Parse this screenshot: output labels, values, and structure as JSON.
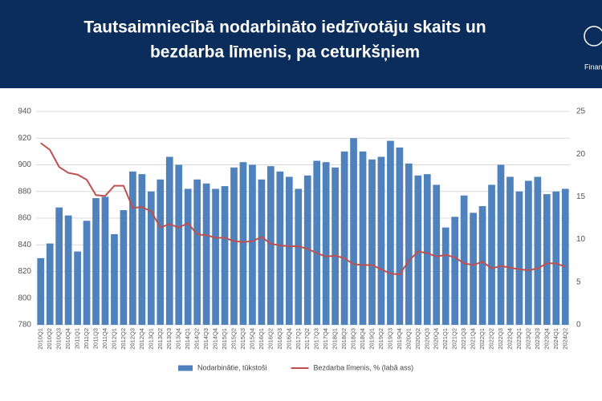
{
  "chart_data": {
    "type": "bar_line",
    "title_lines": [
      "Tautsaimniecībā nodarbināto iedzīvotāju skaits un",
      "bezdarba līmenis, pa ceturkšņiem"
    ],
    "logo_text": "Finan",
    "categories": [
      "2010Q1",
      "2010Q2",
      "2010Q3",
      "2010Q4",
      "2011Q1",
      "2011Q2",
      "2011Q3",
      "2011Q4",
      "2012Q1",
      "2012Q2",
      "2012Q3",
      "2012Q4",
      "2013Q1",
      "2013Q2",
      "2013Q3",
      "2013Q4",
      "2014Q1",
      "2014Q2",
      "2014Q3",
      "2014Q4",
      "2015Q1",
      "2015Q2",
      "2015Q3",
      "2015Q4",
      "2016Q1",
      "2016Q2",
      "2016Q3",
      "2016Q4",
      "2017Q1",
      "2017Q2",
      "2017Q3",
      "2017Q4",
      "2018Q1",
      "2018Q2",
      "2018Q3",
      "2018Q4",
      "2019Q1",
      "2019Q2",
      "2019Q3",
      "2019Q4",
      "2020Q1",
      "2020Q2",
      "2020Q3",
      "2020Q4",
      "2021Q1",
      "2021Q2",
      "2021Q3",
      "2021Q4",
      "2022Q1",
      "2022Q2",
      "2022Q3",
      "2022Q4",
      "2023Q1",
      "2023Q2",
      "2023Q3",
      "2023Q4",
      "2024Q1",
      "2024Q2"
    ],
    "series": [
      {
        "name": "Nodarbinātie, tūkstoši",
        "color": "#4f81bd",
        "type": "bar",
        "values": [
          830,
          841,
          868,
          862,
          835,
          858,
          875,
          876,
          848,
          866,
          895,
          893,
          880,
          889,
          906,
          900,
          882,
          889,
          886,
          882,
          884,
          898,
          902,
          900,
          889,
          899,
          895,
          891,
          882,
          892,
          903,
          902,
          898,
          910,
          920,
          910,
          904,
          906,
          918,
          913,
          901,
          892,
          893,
          885,
          853,
          861,
          877,
          864,
          869,
          885,
          900,
          891,
          880,
          888,
          891,
          878,
          880,
          882
        ]
      },
      {
        "name": "Bezdarba līmenis, % (labā ass)",
        "color": "#c0504d",
        "type": "line",
        "axis": "y2",
        "values": [
          21.3,
          20.5,
          18.5,
          17.8,
          17.6,
          17.0,
          15.2,
          15.1,
          16.3,
          16.3,
          13.7,
          13.8,
          13.3,
          11.4,
          11.8,
          11.4,
          11.9,
          10.6,
          10.5,
          10.2,
          10.2,
          9.8,
          9.7,
          9.8,
          10.3,
          9.5,
          9.3,
          9.2,
          9.2,
          8.9,
          8.4,
          8.0,
          8.1,
          7.8,
          7.1,
          7.0,
          7.0,
          6.5,
          6.0,
          5.9,
          7.5,
          8.6,
          8.4,
          8.0,
          8.2,
          7.9,
          7.2,
          7.0,
          7.4,
          6.6,
          6.9,
          6.7,
          6.5,
          6.4,
          6.6,
          7.2,
          7.2,
          6.8
        ]
      }
    ],
    "ylim": [
      780,
      940
    ],
    "yticks": [
      780,
      800,
      820,
      840,
      860,
      880,
      900,
      920,
      940
    ],
    "y2lim": [
      0,
      25
    ],
    "y2ticks": [
      0,
      5,
      10,
      15,
      20,
      25
    ],
    "grid": true,
    "legend": "bottom"
  }
}
